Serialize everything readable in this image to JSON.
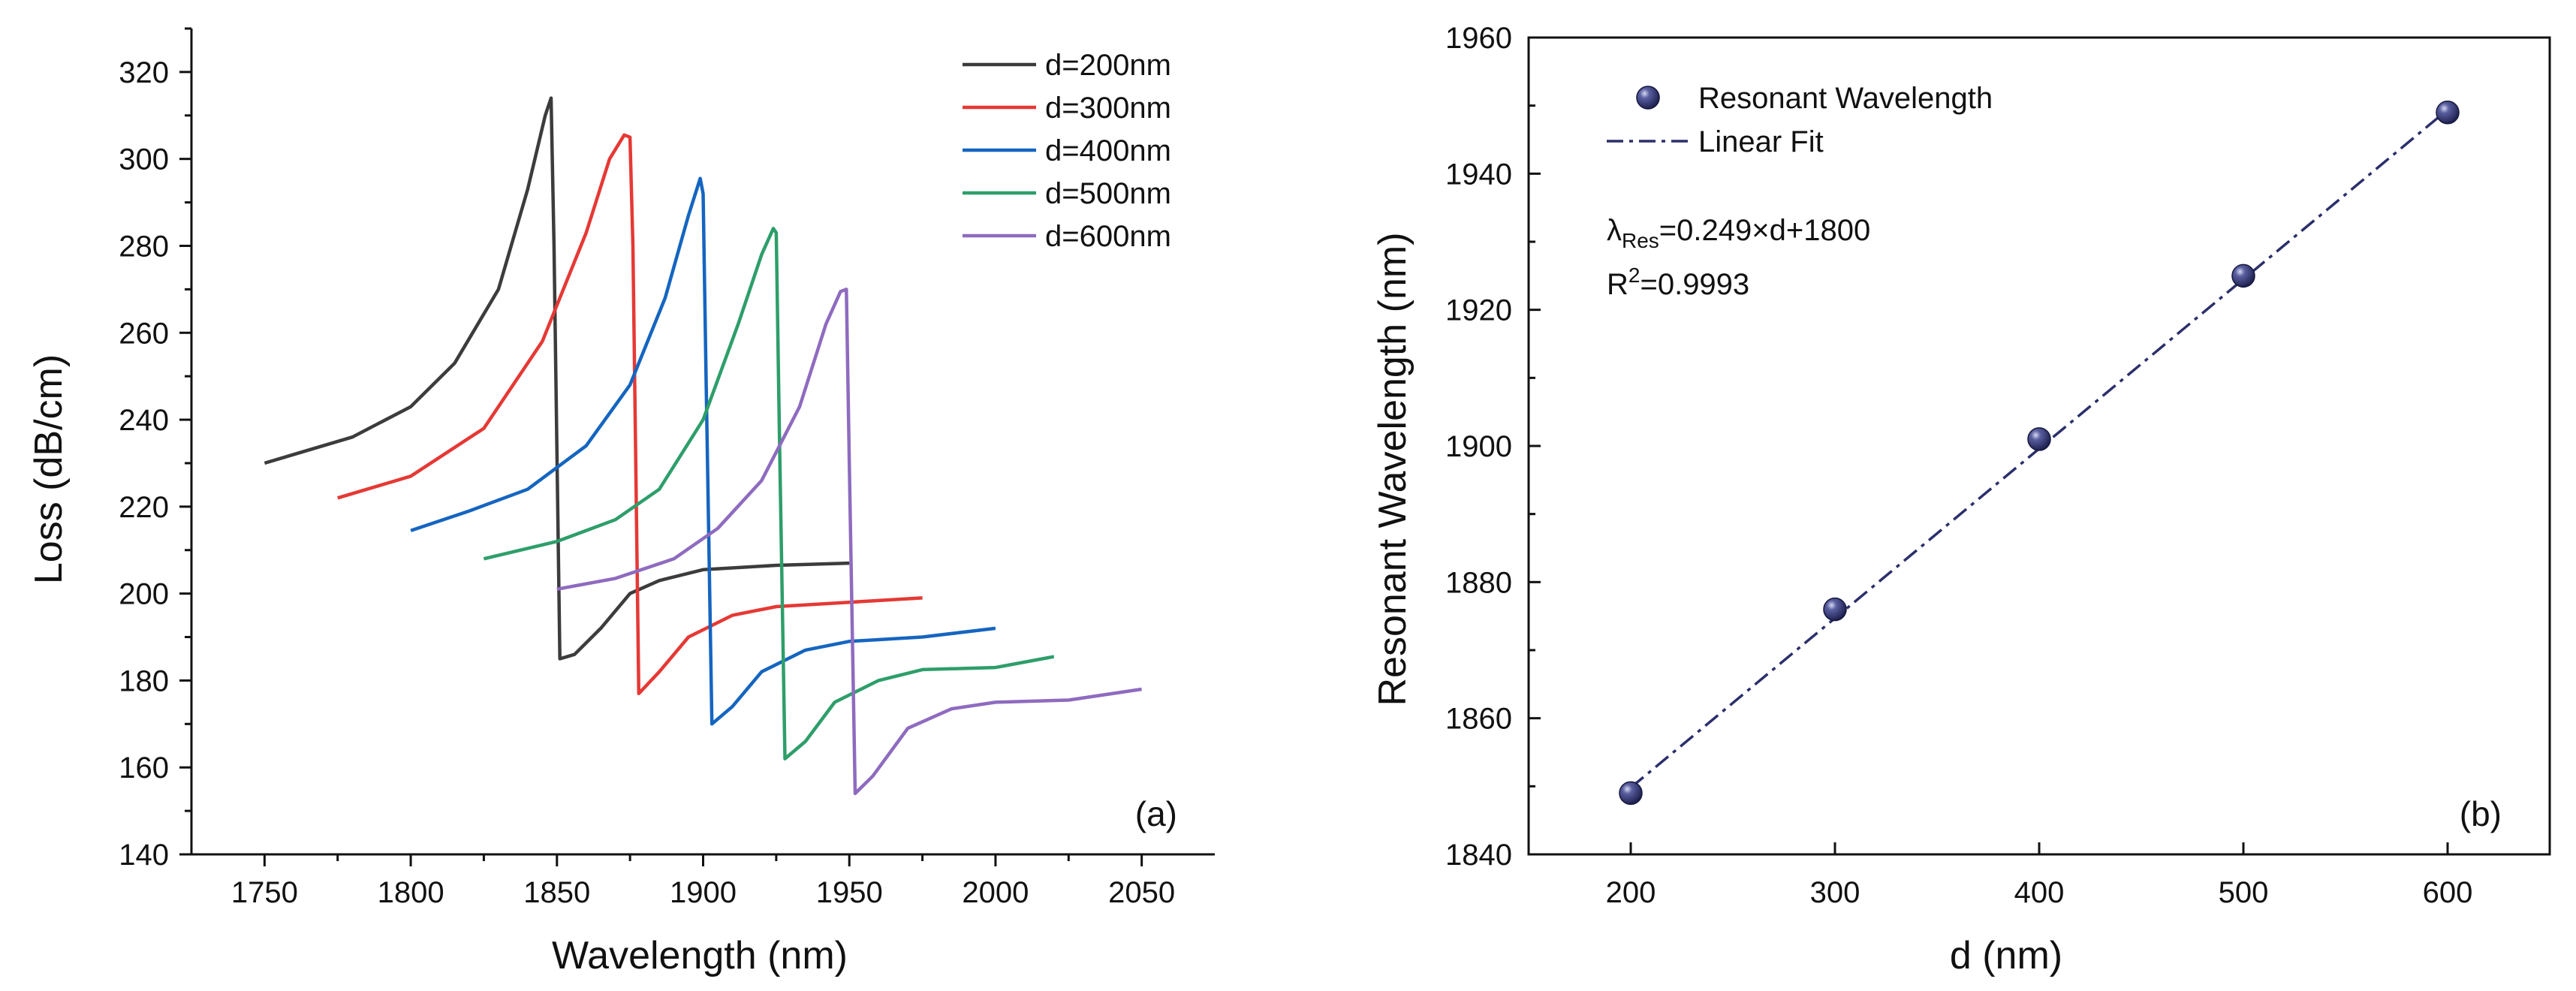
{
  "chart_data": [
    {
      "panel": "(a)",
      "type": "line",
      "xlabel": "Wavelength (nm)",
      "ylabel": "Loss (dB/cm)",
      "xlim": [
        1725,
        2075
      ],
      "ylim": [
        140,
        330
      ],
      "xticks": [
        1750,
        1800,
        1850,
        1900,
        1950,
        2000,
        2050
      ],
      "yticks": [
        140,
        160,
        180,
        200,
        220,
        240,
        260,
        280,
        300,
        320
      ],
      "legend_position": "top-right",
      "series": [
        {
          "name": "d=200nm",
          "color": "#3c3c3c",
          "x": [
            1750,
            1780,
            1800,
            1815,
            1830,
            1840,
            1846,
            1848,
            1849,
            1851,
            1856,
            1865,
            1875,
            1885,
            1900,
            1925,
            1950
          ],
          "y": [
            230,
            236,
            243,
            253,
            270,
            293,
            310,
            314,
            280,
            185,
            186,
            192,
            200,
            203,
            205.5,
            206.5,
            207
          ]
        },
        {
          "name": "d=300nm",
          "color": "#e53935",
          "x": [
            1775,
            1800,
            1825,
            1845,
            1860,
            1868,
            1873,
            1875,
            1876,
            1878,
            1885,
            1895,
            1910,
            1925,
            1950,
            1975
          ],
          "y": [
            222,
            227,
            238,
            258,
            283,
            300,
            305.5,
            305,
            280,
            177,
            182,
            190,
            195,
            197,
            198,
            199
          ]
        },
        {
          "name": "d=400nm",
          "color": "#1565c0",
          "x": [
            1800,
            1820,
            1840,
            1860,
            1875,
            1887,
            1895,
            1899,
            1900,
            1901,
            1903,
            1910,
            1920,
            1935,
            1950,
            1975,
            2000
          ],
          "y": [
            214.5,
            219,
            224,
            234,
            248,
            268,
            287,
            295.5,
            292,
            250,
            170,
            174,
            182,
            187,
            189,
            190,
            192
          ]
        },
        {
          "name": "d=500nm",
          "color": "#2e9e6a",
          "x": [
            1825,
            1850,
            1870,
            1885,
            1900,
            1912,
            1920,
            1924,
            1925,
            1926,
            1928,
            1935,
            1945,
            1960,
            1975,
            2000,
            2020
          ],
          "y": [
            208,
            212,
            217,
            224,
            240,
            262,
            278,
            284,
            283,
            240,
            162,
            166,
            175,
            180,
            182.5,
            183,
            185.5
          ]
        },
        {
          "name": "d=600nm",
          "color": "#8e6bbf",
          "x": [
            1850,
            1870,
            1890,
            1905,
            1920,
            1933,
            1942,
            1947,
            1949,
            1950,
            1952,
            1958,
            1970,
            1985,
            2000,
            2025,
            2050
          ],
          "y": [
            201,
            203.5,
            208,
            215,
            226,
            243,
            262,
            269.5,
            270,
            230,
            154,
            158,
            169,
            173.5,
            175,
            175.5,
            178
          ]
        }
      ]
    },
    {
      "panel": "(b)",
      "type": "scatter",
      "xlabel": "d (nm)",
      "ylabel": "Resonant Wavelength (nm)",
      "xlim": [
        150,
        650
      ],
      "ylim": [
        1840,
        1960
      ],
      "xticks": [
        200,
        300,
        400,
        500,
        600
      ],
      "yticks": [
        1840,
        1860,
        1880,
        1900,
        1920,
        1940,
        1960
      ],
      "legend_position": "top-left",
      "legend": [
        "Resonant Wavelength",
        "Linear Fit"
      ],
      "x": [
        200,
        300,
        400,
        500,
        600
      ],
      "y": [
        1849,
        1876,
        1901,
        1925,
        1949
      ],
      "marker_color": "#2b2f6b",
      "fit": {
        "slope": 0.249,
        "intercept": 1800,
        "color": "#2b2f6b"
      },
      "equation_prefix": "λ",
      "equation_sub": "Res",
      "equation_suffix": "=0.249×d+1800",
      "r2_prefix": "R",
      "r2_sup": "2",
      "r2_suffix": "=0.9993"
    }
  ]
}
